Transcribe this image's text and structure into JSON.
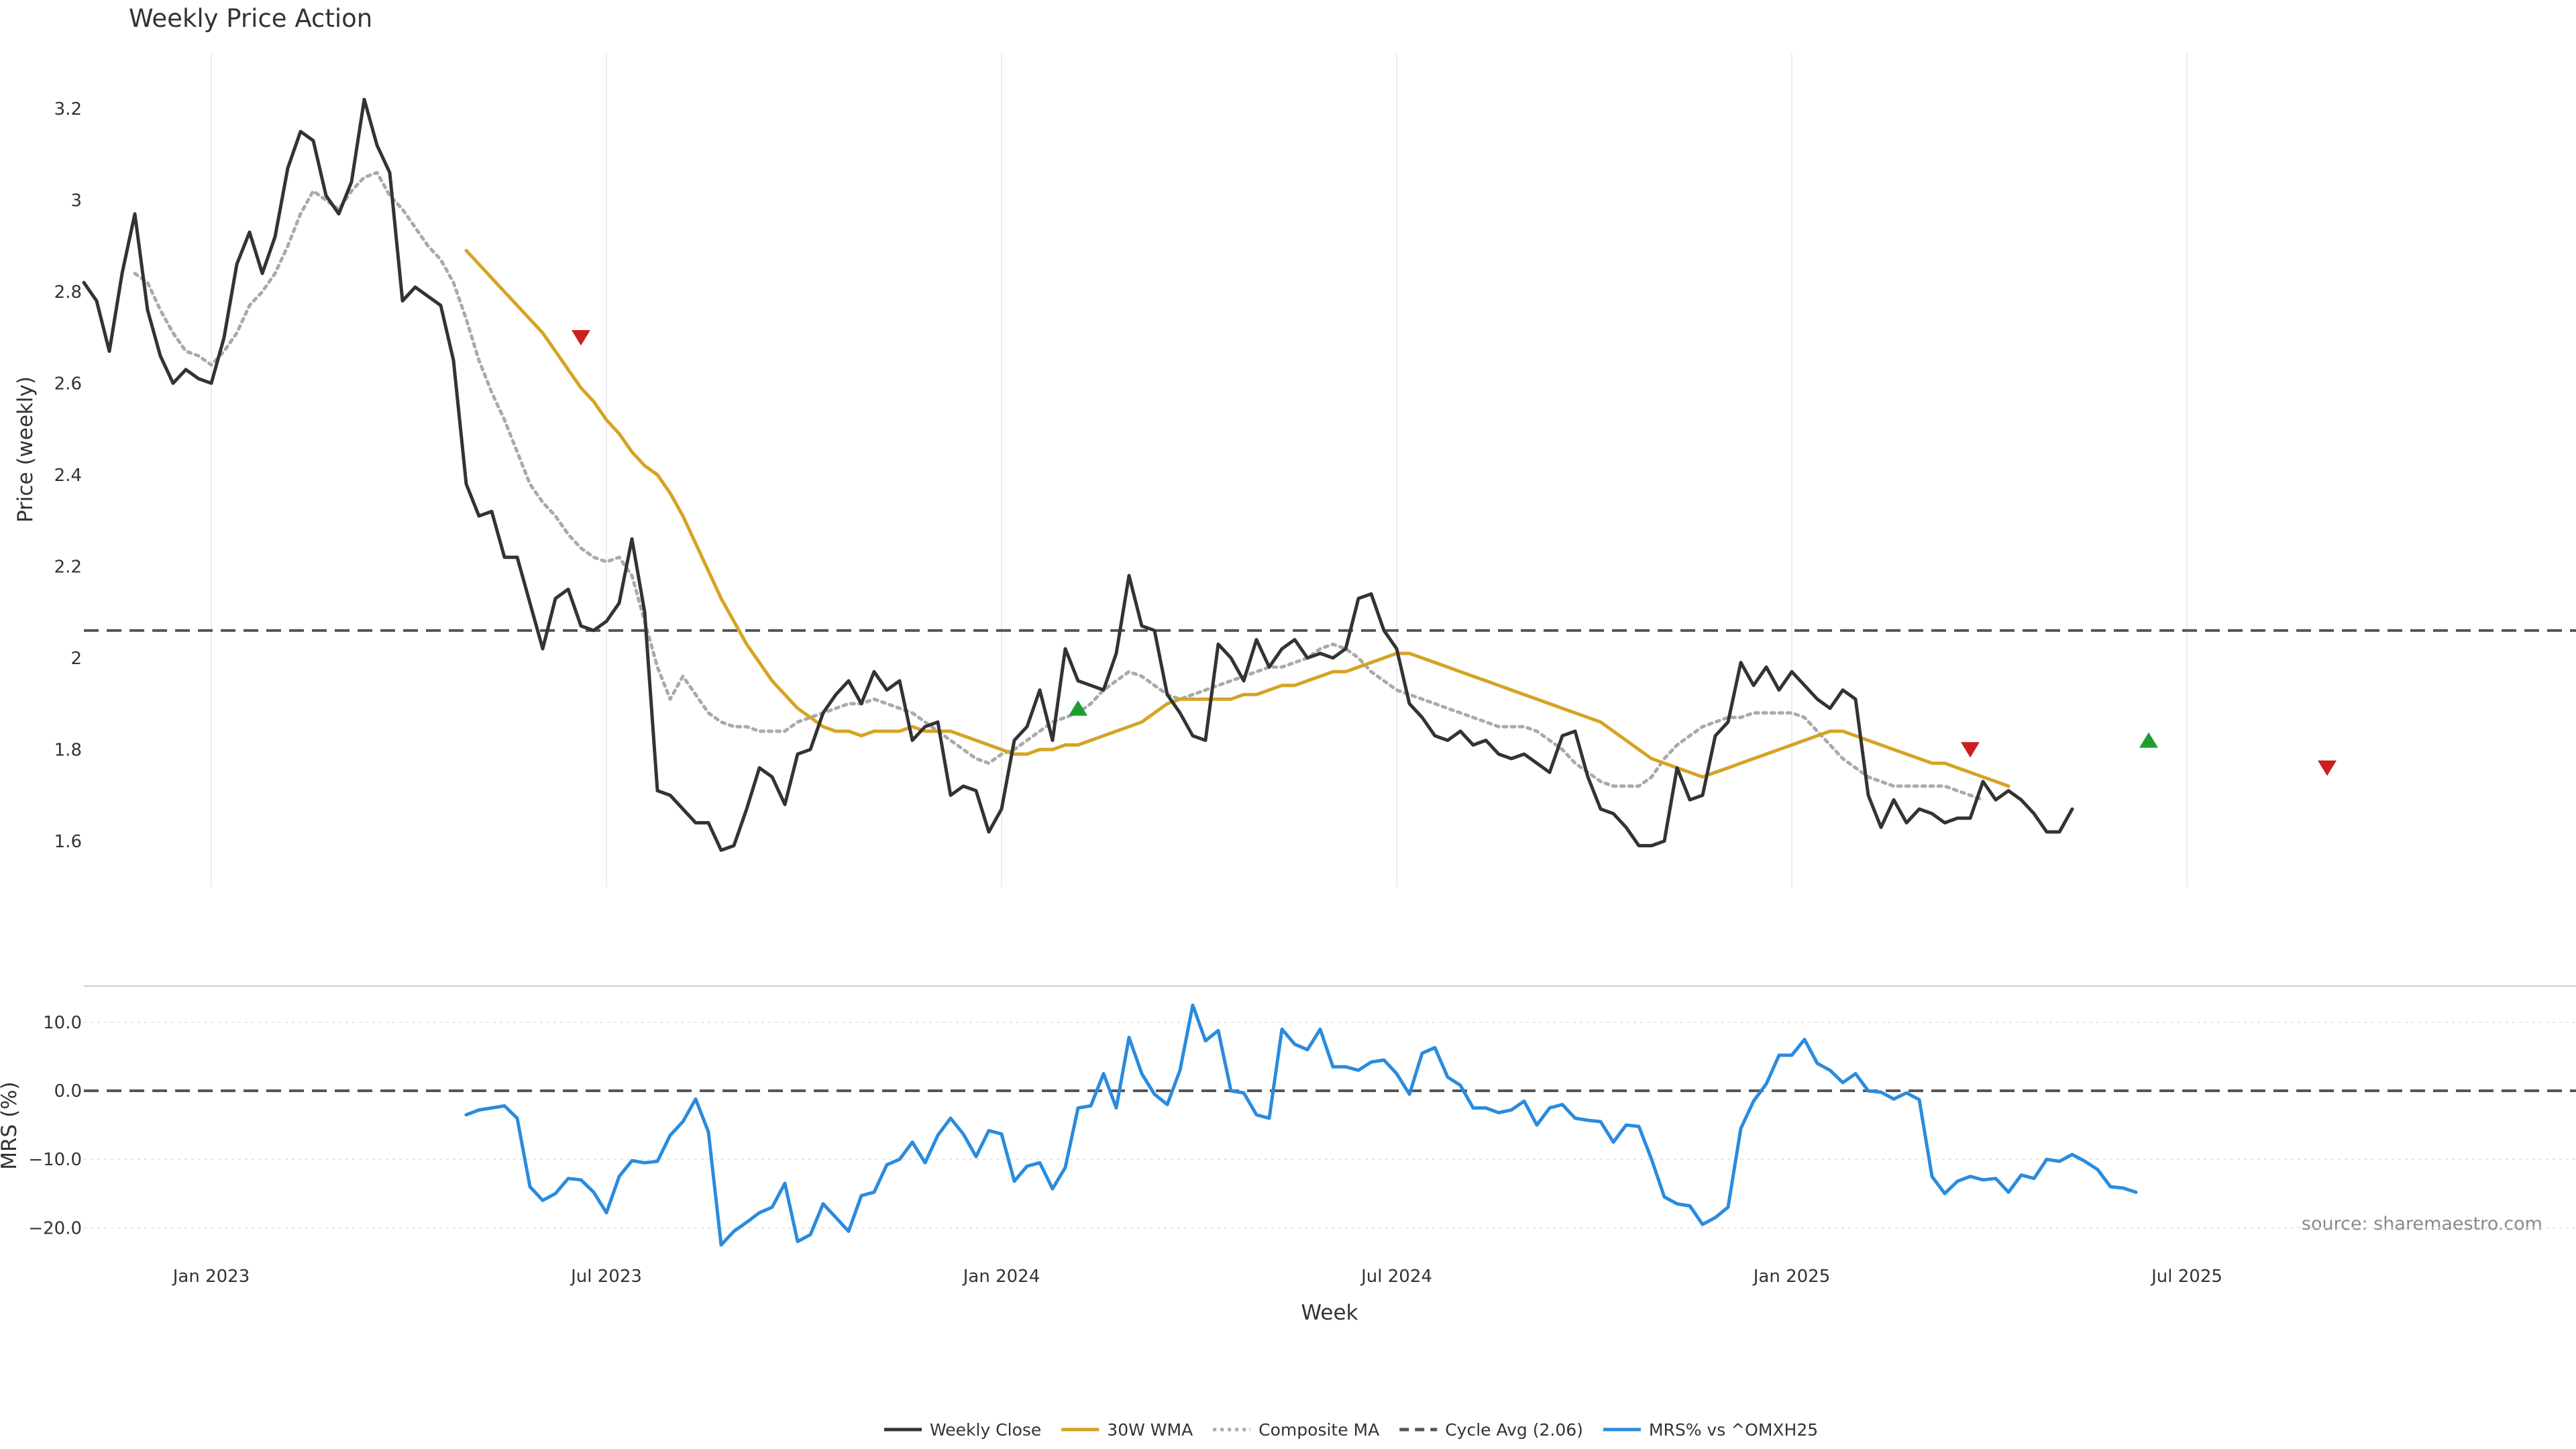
{
  "chart_data": [
    {
      "id": "price",
      "type": "line",
      "title": "Weekly Price Action",
      "ylabel": "Price (weekly)",
      "xlabel": "",
      "ylim": [
        1.5,
        3.32
      ],
      "yticks": [
        1.6,
        1.8,
        2.0,
        2.2,
        2.4,
        2.6,
        2.8,
        3.0,
        3.2
      ],
      "ytick_labels": [
        "1.6",
        "1.8",
        "2",
        "2.2",
        "2.4",
        "2.6",
        "2.8",
        "3",
        "3.2"
      ],
      "grid": "vertical",
      "series": [
        {
          "name": "Weekly Close",
          "color": "#333333",
          "style": "solid",
          "values": [
            2.82,
            2.78,
            2.67,
            2.84,
            2.97,
            2.76,
            2.66,
            2.6,
            2.63,
            2.61,
            2.6,
            2.7,
            2.86,
            2.93,
            2.84,
            2.92,
            3.07,
            3.15,
            3.13,
            3.01,
            2.97,
            3.04,
            3.22,
            3.12,
            3.06,
            2.78,
            2.81,
            2.79,
            2.77,
            2.65,
            2.38,
            2.31,
            2.32,
            2.22,
            2.22,
            2.12,
            2.02,
            2.13,
            2.15,
            2.07,
            2.06,
            2.08,
            2.12,
            2.26,
            2.1,
            1.71,
            1.7,
            1.67,
            1.64,
            1.64,
            1.58,
            1.59,
            1.67,
            1.76,
            1.74,
            1.68,
            1.79,
            1.8,
            1.88,
            1.92,
            1.95,
            1.9,
            1.97,
            1.93,
            1.95,
            1.82,
            1.85,
            1.86,
            1.7,
            1.72,
            1.71,
            1.62,
            1.67,
            1.82,
            1.85,
            1.93,
            1.82,
            2.02,
            1.95,
            1.94,
            1.93,
            2.01,
            2.18,
            2.07,
            2.06,
            1.92,
            1.88,
            1.83,
            1.82,
            2.03,
            2.0,
            1.95,
            2.04,
            1.98,
            2.02,
            2.04,
            2.0,
            2.01,
            2.0,
            2.02,
            2.13,
            2.14,
            2.06,
            2.02,
            1.9,
            1.87,
            1.83,
            1.82,
            1.84,
            1.81,
            1.82,
            1.79,
            1.78,
            1.79,
            1.77,
            1.75,
            1.83,
            1.84,
            1.74,
            1.67,
            1.66,
            1.63,
            1.59,
            1.59,
            1.6,
            1.76,
            1.69,
            1.7,
            1.83,
            1.86,
            1.99,
            1.94,
            1.98,
            1.93,
            1.97,
            1.94,
            1.91,
            1.89,
            1.93,
            1.91,
            1.7,
            1.63,
            1.69,
            1.64,
            1.67,
            1.66,
            1.64,
            1.65,
            1.65,
            1.73,
            1.69,
            1.71,
            1.69,
            1.66,
            1.62,
            1.62,
            1.67
          ]
        },
        {
          "name": "30W WMA",
          "color": "#d6a324",
          "style": "solid",
          "start_index": 30,
          "values": [
            2.89,
            2.86,
            2.83,
            2.8,
            2.77,
            2.74,
            2.71,
            2.67,
            2.63,
            2.59,
            2.56,
            2.52,
            2.49,
            2.45,
            2.42,
            2.4,
            2.36,
            2.31,
            2.25,
            2.19,
            2.13,
            2.08,
            2.03,
            1.99,
            1.95,
            1.92,
            1.89,
            1.87,
            1.85,
            1.84,
            1.84,
            1.83,
            1.84,
            1.84,
            1.84,
            1.85,
            1.84,
            1.84,
            1.84,
            1.83,
            1.82,
            1.81,
            1.8,
            1.79,
            1.79,
            1.8,
            1.8,
            1.81,
            1.81,
            1.82,
            1.83,
            1.84,
            1.85,
            1.86,
            1.88,
            1.9,
            1.91,
            1.91,
            1.91,
            1.91,
            1.91,
            1.92,
            1.92,
            1.93,
            1.94,
            1.94,
            1.95,
            1.96,
            1.97,
            1.97,
            1.98,
            1.99,
            2.0,
            2.01,
            2.01,
            2.0,
            1.99,
            1.98,
            1.97,
            1.96,
            1.95,
            1.94,
            1.93,
            1.92,
            1.91,
            1.9,
            1.89,
            1.88,
            1.87,
            1.86,
            1.84,
            1.82,
            1.8,
            1.78,
            1.77,
            1.76,
            1.75,
            1.74,
            1.75,
            1.76,
            1.77,
            1.78,
            1.79,
            1.8,
            1.81,
            1.82,
            1.83,
            1.84,
            1.84,
            1.83,
            1.82,
            1.81,
            1.8,
            1.79,
            1.78,
            1.77,
            1.77,
            1.76,
            1.75,
            1.74,
            1.73,
            1.72
          ]
        },
        {
          "name": "Composite MA",
          "color": "#aaaaaa",
          "style": "dotted",
          "start_index": 4,
          "values": [
            2.84,
            2.82,
            2.76,
            2.71,
            2.67,
            2.66,
            2.64,
            2.67,
            2.71,
            2.77,
            2.8,
            2.84,
            2.9,
            2.97,
            3.02,
            3.0,
            2.98,
            3.02,
            3.05,
            3.06,
            3.01,
            2.98,
            2.94,
            2.9,
            2.87,
            2.82,
            2.74,
            2.65,
            2.58,
            2.52,
            2.45,
            2.38,
            2.34,
            2.31,
            2.27,
            2.24,
            2.22,
            2.21,
            2.22,
            2.18,
            2.08,
            1.98,
            1.91,
            1.96,
            1.92,
            1.88,
            1.86,
            1.85,
            1.85,
            1.84,
            1.84,
            1.84,
            1.86,
            1.87,
            1.88,
            1.89,
            1.9,
            1.9,
            1.91,
            1.9,
            1.89,
            1.88,
            1.86,
            1.84,
            1.82,
            1.8,
            1.78,
            1.77,
            1.79,
            1.8,
            1.82,
            1.84,
            1.86,
            1.87,
            1.88,
            1.9,
            1.93,
            1.95,
            1.97,
            1.96,
            1.94,
            1.92,
            1.91,
            1.92,
            1.93,
            1.94,
            1.95,
            1.96,
            1.97,
            1.98,
            1.98,
            1.99,
            2.0,
            2.02,
            2.03,
            2.02,
            2.0,
            1.97,
            1.95,
            1.93,
            1.92,
            1.91,
            1.9,
            1.89,
            1.88,
            1.87,
            1.86,
            1.85,
            1.85,
            1.85,
            1.84,
            1.82,
            1.8,
            1.77,
            1.75,
            1.73,
            1.72,
            1.72,
            1.72,
            1.74,
            1.78,
            1.81,
            1.83,
            1.85,
            1.86,
            1.87,
            1.87,
            1.88,
            1.88,
            1.88,
            1.88,
            1.87,
            1.84,
            1.81,
            1.78,
            1.76,
            1.74,
            1.73,
            1.72,
            1.72,
            1.72,
            1.72,
            1.72,
            1.71,
            1.7,
            1.69
          ]
        },
        {
          "name": "Cycle Avg (2.06)",
          "color": "#555555",
          "style": "dashed",
          "constant": 2.06
        }
      ],
      "markers": [
        {
          "type": "sell",
          "index": 39,
          "value": 2.7,
          "color": "#cc1f1f"
        },
        {
          "type": "buy",
          "index": 78,
          "value": 1.89,
          "color": "#1f9e2f"
        },
        {
          "type": "sell",
          "index": 148,
          "value": 1.8,
          "color": "#cc1f1f"
        },
        {
          "type": "buy",
          "index": 162,
          "value": 1.82,
          "color": "#1f9e2f"
        },
        {
          "type": "sell",
          "index": 176,
          "value": 1.76,
          "color": "#cc1f1f"
        }
      ]
    },
    {
      "id": "mrs",
      "type": "line",
      "title": "",
      "ylabel": "MRS (%)",
      "xlabel": "Week",
      "ylim": [
        -23.5,
        14.5
      ],
      "yticks": [
        -20,
        -10,
        0,
        10
      ],
      "ytick_labels": [
        "−20.0",
        "−10.0",
        "0.0",
        "10.0"
      ],
      "grid": "horizontal",
      "xtick_positions": [
        10,
        41,
        72,
        103,
        134,
        165
      ],
      "xtick_labels": [
        "Jan 2023",
        "Jul 2023",
        "Jan 2024",
        "Jul 2024",
        "Jan 2025",
        "Jul 2025"
      ],
      "series": [
        {
          "name": "MRS% vs ^OMXH25",
          "color": "#2a8bde",
          "style": "solid",
          "start_index": 30,
          "values": [
            -3.5,
            -2.8,
            -2.5,
            -2.2,
            -4,
            -14,
            -16,
            -15,
            -12.8,
            -13,
            -14.8,
            -17.8,
            -12.5,
            -10.2,
            -10.5,
            -10.3,
            -6.5,
            -4.5,
            -1.2,
            -6,
            -22.5,
            -20.5,
            -19.2,
            -17.8,
            -17,
            -13.5,
            -22,
            -21,
            -16.5,
            -18.5,
            -20.5,
            -15.3,
            -14.8,
            -10.8,
            -10,
            -7.5,
            -10.5,
            -6.5,
            -4,
            -6.3,
            -9.6,
            -5.8,
            -6.3,
            -13.2,
            -11,
            -10.5,
            -14.3,
            -11.2,
            -2.5,
            -2.2,
            2.5,
            -2.5,
            7.8,
            2.5,
            -0.5,
            -2,
            3,
            12.5,
            7.3,
            8.8,
            0,
            -0.3,
            -3.5,
            -4,
            9,
            6.8,
            6,
            9,
            3.5,
            3.5,
            3,
            4.2,
            4.5,
            2.5,
            -0.5,
            5.5,
            6.3,
            2,
            0.8,
            -2.5,
            -2.5,
            -3.2,
            -2.8,
            -1.5,
            -5,
            -2.5,
            -2,
            -4,
            -4.3,
            -4.5,
            -7.5,
            -5,
            -5.2,
            -10,
            -15.5,
            -16.5,
            -16.8,
            -19.5,
            -18.5,
            -17,
            -5.5,
            -1.5,
            1,
            5.2,
            5.2,
            7.5,
            4,
            3,
            1.2,
            2.5,
            0,
            -0.2,
            -1.2,
            -0.3,
            -1.3,
            -12.5,
            -15,
            -13.2,
            -12.5,
            -13,
            -12.8,
            -14.8,
            -12.3,
            -12.8,
            -10,
            -10.3,
            -9.3,
            -10.3,
            -11.5,
            -14,
            -14.2,
            -14.8
          ]
        },
        {
          "name": "Zero line",
          "color": "#555555",
          "style": "dashed",
          "constant": 0
        }
      ]
    }
  ],
  "legend": [
    {
      "label": "Weekly Close",
      "color": "#333333",
      "style": "solid"
    },
    {
      "label": "30W WMA",
      "color": "#d6a324",
      "style": "solid"
    },
    {
      "label": "Composite MA",
      "color": "#aaaaaa",
      "style": "dotted"
    },
    {
      "label": "Cycle Avg (2.06)",
      "color": "#555555",
      "style": "dashed"
    },
    {
      "label": "MRS% vs ^OMXH25",
      "color": "#2a8bde",
      "style": "solid"
    }
  ],
  "legend_position": "bottom-center",
  "source_note": "source: sharemaestro.com"
}
